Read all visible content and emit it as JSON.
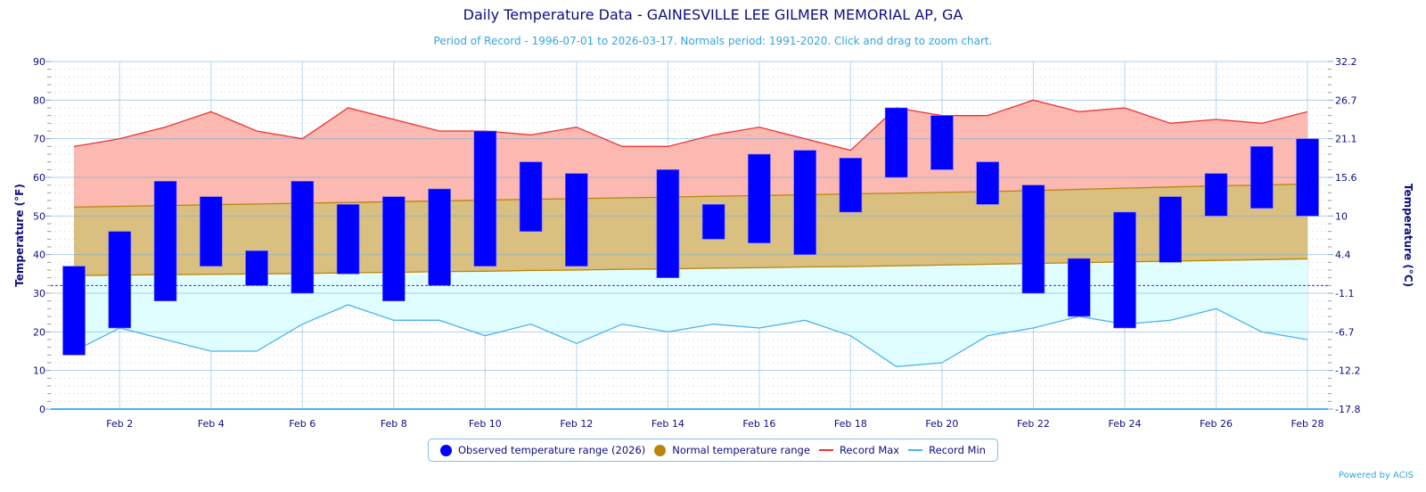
{
  "header": {
    "title": "Daily Temperature Data - GAINESVILLE LEE GILMER MEMORIAL AP, GA",
    "subtitle": "Period of Record - 1996-07-01 to 2026-03-17. Normals period: 1991-2020. Click and drag to zoom chart."
  },
  "legend": {
    "observed": "Observed temperature range (2026)",
    "normal": "Normal temperature range",
    "record_max": "Record Max",
    "record_min": "Record Min"
  },
  "credit": "Powered by ACIS",
  "colors": {
    "observed": "#0000ff",
    "normal_fill": "#d9bf80",
    "normal_line": "#b8860b",
    "record_max_line": "#ee3333",
    "record_max_fill": "#fbb9b2",
    "record_min_line": "#4fb2ea",
    "record_min_fill": "#e0feff",
    "freezing_line": "#3333cc",
    "legend_normal_dot": "#b8860b"
  },
  "chart_data": {
    "type": "range-bar + area",
    "title": "Daily Temperature Data - GAINESVILLE LEE GILMER MEMORIAL AP, GA",
    "subtitle": "Period of Record - 1996-07-01 to 2026-03-17. Normals period: 1991-2020. Click and drag to zoom chart.",
    "ylabel": "Temperature (°F)",
    "ylabel_right": "Temperature (°C)",
    "ylim": [
      0,
      90
    ],
    "yticks": [
      0,
      10,
      20,
      30,
      40,
      50,
      60,
      70,
      80,
      90
    ],
    "yticks_right": [
      "-17.8",
      "-12.2",
      "-6.7",
      "-1.1",
      "4.4",
      "10",
      "15.6",
      "21.1",
      "26.7",
      "32.2"
    ],
    "freezing_line": 32,
    "x_labels_shown": [
      "Feb 2",
      "Feb 4",
      "Feb 6",
      "Feb 8",
      "Feb 10",
      "Feb 12",
      "Feb 14",
      "Feb 16",
      "Feb 18",
      "Feb 20",
      "Feb 22",
      "Feb 24",
      "Feb 26",
      "Feb 28"
    ],
    "days": [
      1,
      2,
      3,
      4,
      5,
      6,
      7,
      8,
      9,
      10,
      11,
      12,
      13,
      14,
      15,
      16,
      17,
      18,
      19,
      20,
      21,
      22,
      23,
      24,
      25,
      26,
      27,
      28
    ],
    "grid": true,
    "legend_position": "bottom-center",
    "series": [
      {
        "name": "Observed temperature range (2026)",
        "type": "range-bar",
        "high": [
          37,
          46,
          59,
          55,
          41,
          59,
          53,
          55,
          57,
          72,
          64,
          61,
          null,
          62,
          53,
          66,
          67,
          65,
          78,
          76,
          64,
          58,
          39,
          51,
          55,
          61,
          68,
          70
        ],
        "low": [
          14,
          21,
          28,
          37,
          32,
          30,
          35,
          28,
          32,
          37,
          46,
          37,
          null,
          34,
          44,
          43,
          40,
          51,
          60,
          62,
          53,
          30,
          24,
          21,
          38,
          50,
          52,
          50
        ]
      },
      {
        "name": "Normal temperature range",
        "type": "area-range",
        "high": [
          52.3,
          52.5,
          52.7,
          52.9,
          53.1,
          53.3,
          53.5,
          53.7,
          53.9,
          54.1,
          54.3,
          54.5,
          54.7,
          54.9,
          55.1,
          55.3,
          55.5,
          55.7,
          55.9,
          56.1,
          56.3,
          56.6,
          56.9,
          57.2,
          57.5,
          57.8,
          58.0,
          58.3
        ],
        "low": [
          34.6,
          34.7,
          34.8,
          34.9,
          35.0,
          35.1,
          35.3,
          35.4,
          35.6,
          35.7,
          35.9,
          36.0,
          36.2,
          36.3,
          36.5,
          36.6,
          36.8,
          36.9,
          37.1,
          37.3,
          37.5,
          37.7,
          37.9,
          38.1,
          38.3,
          38.5,
          38.7,
          38.9
        ]
      },
      {
        "name": "Record Max",
        "type": "line",
        "values": [
          68,
          70,
          73,
          77,
          72,
          70,
          78,
          75,
          72,
          72,
          71,
          73,
          68,
          68,
          71,
          73,
          70,
          67,
          78,
          76,
          76,
          80,
          77,
          78,
          74,
          75,
          74,
          77
        ]
      },
      {
        "name": "Record Min",
        "type": "line",
        "values": [
          15,
          21,
          18,
          15,
          15,
          22,
          27,
          23,
          23,
          19,
          22,
          17,
          22,
          20,
          22,
          21,
          23,
          19,
          11,
          12,
          19,
          21,
          24,
          22,
          23,
          26,
          20,
          18
        ]
      }
    ]
  }
}
